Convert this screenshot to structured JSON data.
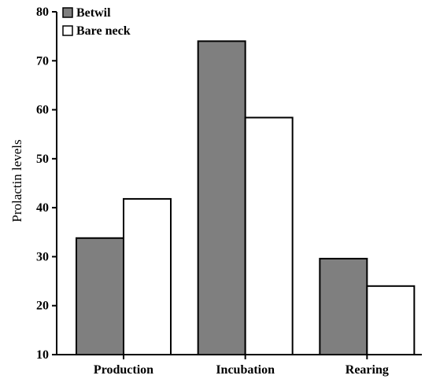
{
  "chart_data": {
    "type": "bar",
    "categories": [
      "Production",
      "Incubation",
      "Rearing"
    ],
    "series": [
      {
        "name": "Betwil",
        "values": [
          33.8,
          74.0,
          29.6
        ],
        "color": "#7f7f7f"
      },
      {
        "name": "Bare neck",
        "values": [
          41.8,
          58.4,
          24.0
        ],
        "color": "#ffffff"
      }
    ],
    "title": "",
    "xlabel": "",
    "ylabel": "Prolactin levels",
    "ylim": [
      10,
      80
    ],
    "yticks": [
      10,
      20,
      30,
      40,
      50,
      60,
      70,
      80
    ],
    "grid": false,
    "legend_position": "top-left"
  }
}
